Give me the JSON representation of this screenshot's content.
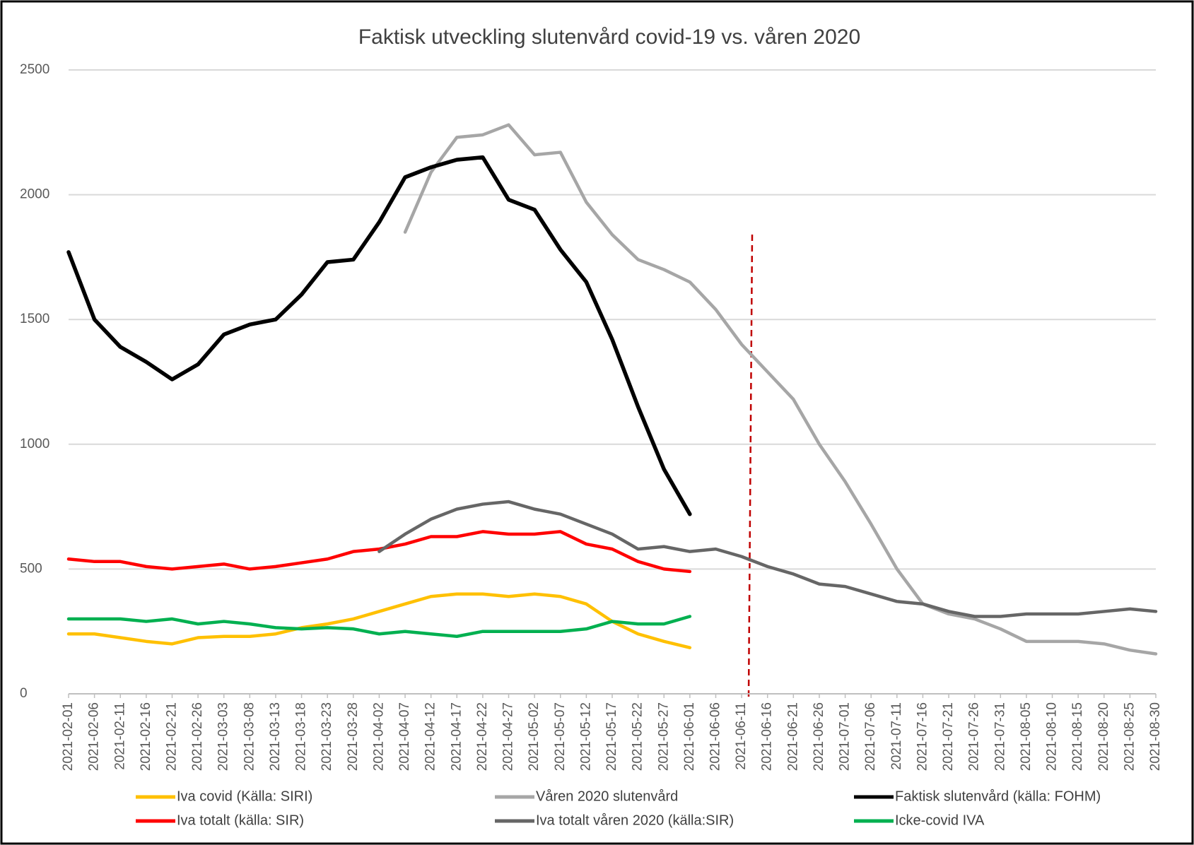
{
  "chart_data": {
    "type": "line",
    "title": "Faktisk utveckling slutenvård covid-19 vs. våren 2020",
    "categories": [
      "2021-02-01",
      "2021-02-06",
      "2021-02-11",
      "2021-02-16",
      "2021-02-21",
      "2021-02-26",
      "2021-03-03",
      "2021-03-08",
      "2021-03-13",
      "2021-03-18",
      "2021-03-23",
      "2021-03-28",
      "2021-04-02",
      "2021-04-07",
      "2021-04-12",
      "2021-04-17",
      "2021-04-22",
      "2021-04-27",
      "2021-05-02",
      "2021-05-07",
      "2021-05-12",
      "2021-05-17",
      "2021-05-22",
      "2021-05-27",
      "2021-06-01",
      "2021-06-06",
      "2021-06-11",
      "2021-06-16",
      "2021-06-21",
      "2021-06-26",
      "2021-07-01",
      "2021-07-06",
      "2021-07-11",
      "2021-07-16",
      "2021-07-21",
      "2021-07-26",
      "2021-07-31",
      "2021-08-05",
      "2021-08-10",
      "2021-08-15",
      "2021-08-20",
      "2021-08-25",
      "2021-08-30"
    ],
    "series": [
      {
        "name": "Iva covid (Källa: SIRI)",
        "color": "#ffc000",
        "values": [
          240,
          240,
          225,
          210,
          200,
          225,
          230,
          230,
          240,
          265,
          280,
          300,
          330,
          360,
          390,
          400,
          400,
          390,
          400,
          390,
          360,
          290,
          240,
          210,
          185,
          null,
          null,
          null,
          null,
          null,
          null,
          null,
          null,
          null,
          null,
          null,
          null,
          null,
          null,
          null,
          null,
          null,
          null
        ]
      },
      {
        "name": "Våren 2020 slutenvård",
        "color": "#a6a6a6",
        "values": [
          null,
          null,
          null,
          null,
          null,
          null,
          null,
          null,
          null,
          null,
          null,
          null,
          null,
          1850,
          2090,
          2230,
          2240,
          2280,
          2160,
          2170,
          1970,
          1840,
          1740,
          1700,
          1650,
          1540,
          1400,
          1290,
          1180,
          1000,
          850,
          680,
          500,
          360,
          320,
          300,
          260,
          210,
          210,
          210,
          200,
          175,
          160
        ]
      },
      {
        "name": "Faktisk slutenvård (källa: FOHM)",
        "color": "#000000",
        "values": [
          1770,
          1500,
          1390,
          1330,
          1260,
          1320,
          1440,
          1480,
          1500,
          1600,
          1730,
          1740,
          1890,
          2070,
          2110,
          2140,
          2150,
          1980,
          1940,
          1780,
          1650,
          1420,
          1150,
          900,
          720,
          null,
          null,
          null,
          null,
          null,
          null,
          null,
          null,
          null,
          null,
          null,
          null,
          null,
          null,
          null,
          null,
          null,
          null
        ]
      },
      {
        "name": "Iva totalt (källa: SIR)",
        "color": "#ff0000",
        "values": [
          540,
          530,
          530,
          510,
          500,
          510,
          520,
          500,
          510,
          525,
          540,
          570,
          580,
          600,
          630,
          630,
          650,
          640,
          640,
          650,
          600,
          580,
          530,
          500,
          490,
          null,
          null,
          null,
          null,
          null,
          null,
          null,
          null,
          null,
          null,
          null,
          null,
          null,
          null,
          null,
          null,
          null,
          null
        ]
      },
      {
        "name": "Iva totalt våren 2020 (källa:SIR)",
        "color": "#666666",
        "values": [
          null,
          null,
          null,
          null,
          null,
          null,
          null,
          null,
          null,
          null,
          null,
          null,
          570,
          640,
          700,
          740,
          760,
          770,
          740,
          720,
          680,
          640,
          580,
          590,
          570,
          580,
          550,
          510,
          480,
          440,
          430,
          400,
          370,
          360,
          330,
          310,
          310,
          320,
          320,
          320,
          330,
          340,
          330
        ]
      },
      {
        "name": "Icke-covid IVA",
        "color": "#00b050",
        "values": [
          300,
          300,
          300,
          290,
          300,
          280,
          290,
          280,
          265,
          260,
          265,
          260,
          240,
          250,
          240,
          230,
          250,
          250,
          250,
          250,
          260,
          290,
          280,
          280,
          310,
          null,
          null,
          null,
          null,
          null,
          null,
          null,
          null,
          null,
          null,
          null,
          null,
          null,
          null,
          null,
          null,
          null,
          null
        ]
      }
    ],
    "ylim": [
      0,
      2500
    ],
    "yticks": [
      0,
      500,
      1000,
      1500,
      2000,
      2500
    ],
    "grid": true
  }
}
